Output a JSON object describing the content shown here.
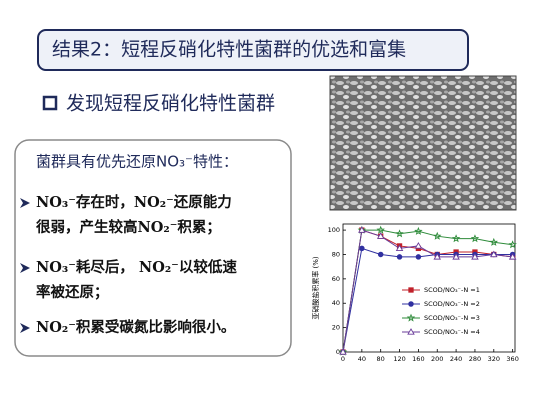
{
  "header": {
    "title": "结果2：短程反硝化特性菌群的优选和富集"
  },
  "section": {
    "heading": "发现短程反硝化特性菌群"
  },
  "box": {
    "intro": "菌群具有优先还原NO₃⁻特性：",
    "bullets": [
      {
        "lines": [
          "NO₃⁻存在时，NO₂⁻还原能力",
          "很弱，产生较高NO₂⁻积累；"
        ]
      },
      {
        "lines": [
          "NO₃⁻耗尽后，  NO₂⁻以较低速",
          "率被还原；"
        ]
      },
      {
        "lines": [
          "NO₂⁻积累受碳氮比影响很小。"
        ]
      }
    ]
  },
  "chart_data": {
    "type": "line",
    "ylabel": "亚硝酸盐积累率 (%)",
    "x": [
      0,
      40,
      80,
      120,
      160,
      200,
      240,
      280,
      320,
      360
    ],
    "xlim": [
      0,
      365
    ],
    "xticks": [
      0,
      40,
      80,
      120,
      160,
      200,
      240,
      280,
      320,
      360
    ],
    "ylim": [
      0,
      105
    ],
    "yticks": [
      0,
      20,
      40,
      60,
      80,
      100
    ],
    "legend": "lower right",
    "series": [
      {
        "name": "SCOD/NO₃⁻-N =1",
        "color": "#c0202a",
        "marker": "square",
        "values": [
          0,
          100,
          95,
          87,
          85,
          80,
          82,
          82,
          80,
          78
        ]
      },
      {
        "name": "SCOD/NO₃⁻-N =2",
        "color": "#3030a0",
        "marker": "circle",
        "values": [
          0,
          85,
          80,
          78,
          78,
          80,
          80,
          80,
          80,
          80
        ]
      },
      {
        "name": "SCOD/NO₃⁻-N =3",
        "color": "#2e8b3a",
        "marker": "star",
        "values": [
          0,
          100,
          100,
          97,
          99,
          95,
          93,
          93,
          90,
          88
        ]
      },
      {
        "name": "SCOD/NO₃⁻-N =4",
        "color": "#6a3c9a",
        "marker": "triangle",
        "values": [
          0,
          100,
          95,
          85,
          87,
          78,
          78,
          78,
          80,
          78
        ]
      }
    ]
  }
}
